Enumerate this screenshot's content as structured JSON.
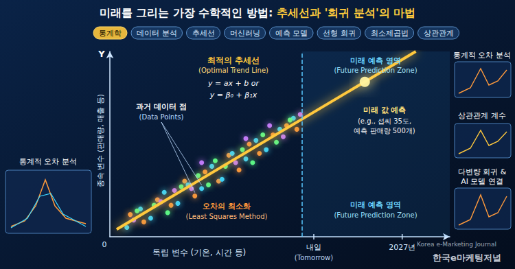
{
  "chart_data": {
    "type": "scatter",
    "title": "미래를 그리는 가장 수학적인 방법:",
    "title_highlight": "추세선과 '회귀 분석'의 마법",
    "tags": [
      "통계학",
      "데이터 분석",
      "추세선",
      "머신러닝",
      "예측 모델",
      "선형 회귀",
      "최소제곱법",
      "상관관계"
    ],
    "x_label": "독립 변수 (기온, 시간 등)",
    "y_label": "종속 변수 (판매량, 매출 등)",
    "y_axis_name": "Y",
    "origin_label": "0",
    "xlim": [
      0,
      100
    ],
    "ylim": [
      0,
      100
    ],
    "tick_labels": false,
    "grid": false,
    "future_zone_start": 56.5,
    "x_markers": [
      {
        "value": 60,
        "label": "내일",
        "sublabel": "(Tomorrow)"
      },
      {
        "value": 86,
        "label": "2027년"
      }
    ],
    "series": [
      {
        "type": "scatter",
        "color": "#ff9a3c",
        "values": [
          [
            6,
            12
          ],
          [
            10,
            8
          ],
          [
            14,
            20
          ],
          [
            18,
            17
          ],
          [
            22,
            30
          ],
          [
            25,
            22
          ],
          [
            28,
            35
          ],
          [
            32,
            30
          ],
          [
            35,
            44
          ],
          [
            38,
            36
          ],
          [
            41,
            50
          ],
          [
            44,
            45
          ],
          [
            48,
            55
          ],
          [
            52,
            60
          ],
          [
            55,
            58
          ]
        ]
      },
      {
        "type": "scatter",
        "color": "#3ed8ff",
        "values": [
          [
            5,
            5
          ],
          [
            9,
            15
          ],
          [
            12,
            10
          ],
          [
            16,
            24
          ],
          [
            20,
            18
          ],
          [
            23,
            28
          ],
          [
            27,
            26
          ],
          [
            30,
            38
          ],
          [
            33,
            31
          ],
          [
            36,
            45
          ],
          [
            40,
            42
          ],
          [
            43,
            52
          ],
          [
            46,
            47
          ],
          [
            50,
            58
          ],
          [
            54,
            64
          ]
        ]
      },
      {
        "type": "scatter",
        "color": "#5dff8a",
        "values": [
          [
            8,
            14
          ],
          [
            13,
            17
          ],
          [
            17,
            13
          ],
          [
            21,
            27
          ],
          [
            26,
            33
          ],
          [
            29,
            28
          ],
          [
            31,
            41
          ],
          [
            34,
            38
          ],
          [
            39,
            47
          ],
          [
            42,
            40
          ],
          [
            45,
            55
          ],
          [
            49,
            51
          ],
          [
            53,
            63
          ]
        ]
      },
      {
        "type": "scatter",
        "color": "#c77dff",
        "values": [
          [
            7,
            9
          ],
          [
            15,
            19
          ],
          [
            19,
            25
          ],
          [
            24,
            26
          ],
          [
            27,
            40
          ],
          [
            37,
            40
          ],
          [
            40,
            53
          ],
          [
            47,
            60
          ],
          [
            51,
            54
          ],
          [
            56,
            66
          ]
        ]
      },
      {
        "type": "line",
        "color": "#ffc83d",
        "values": [
          [
            2,
            4
          ],
          [
            90,
            100
          ]
        ]
      },
      {
        "type": "scatter",
        "color": "#fff3a0",
        "values": [
          [
            75,
            83.6
          ]
        ]
      }
    ],
    "annotations": {
      "trend_title": "최적의 추세선",
      "trend_subtitle": "(Optimal Trend Line)",
      "formula_1": "y = ax + b or",
      "formula_2": "y = β₀ + β₁x",
      "data_points": "과거 데이터 점",
      "data_points_en": "(Data Points)",
      "least_squares": "오차의 최소화",
      "least_squares_en": "(Least Squares Method)",
      "future_zone": "미래 예측 영역",
      "future_zone_en": "(Future Prediction Zone)",
      "prediction_title": "미래 값 예측",
      "prediction_lines": [
        "(e.g., 섭씨 35도,",
        "예측 판매량 500개)"
      ],
      "left_panel": "통계적 오차 분석",
      "right_panels": [
        [
          "통계적 오차 분석"
        ],
        [
          "상관관계 계수"
        ],
        [
          "다변량 회귀 &",
          "AI 모델 연결"
        ]
      ],
      "watermark": [
        "Korea e-Marketing Journal",
        "한국e마케팅저널"
      ]
    }
  }
}
